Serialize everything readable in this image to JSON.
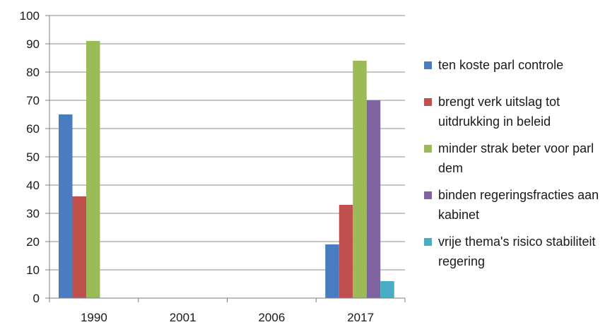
{
  "chart_data": {
    "type": "bar",
    "categories": [
      "1990",
      "2001",
      "2006",
      "2017"
    ],
    "series": [
      {
        "name": "ten koste parl controle",
        "color": "#4a7cc1",
        "values": [
          65,
          0,
          0,
          19
        ]
      },
      {
        "name": "brengt verk uitslag tot uitdrukking in beleid",
        "color": "#c0504d",
        "values": [
          36,
          0,
          0,
          33
        ]
      },
      {
        "name": "minder strak beter voor parl dem",
        "color": "#9bbb59",
        "values": [
          91,
          0,
          0,
          84
        ]
      },
      {
        "name": "binden regeringsfracties aan kabinet",
        "color": "#8064a2",
        "values": [
          0,
          0,
          0,
          70
        ]
      },
      {
        "name": "vrije thema's risico stabiliteit regering",
        "color": "#4bacc6",
        "values": [
          0,
          0,
          0,
          6
        ]
      }
    ],
    "ylim": [
      0,
      100
    ],
    "yticks": [
      0,
      10,
      20,
      30,
      40,
      50,
      60,
      70,
      80,
      90,
      100
    ],
    "grid": true,
    "legend": "right"
  }
}
